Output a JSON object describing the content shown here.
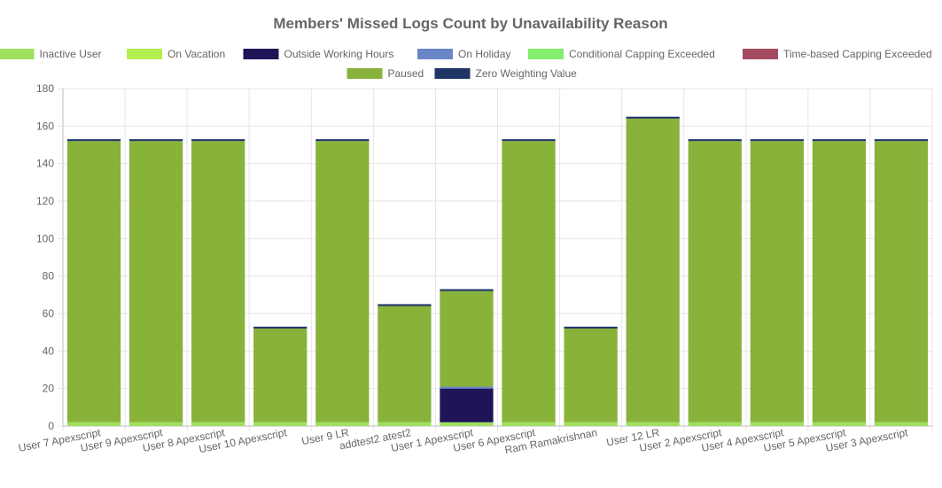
{
  "chart_data": {
    "type": "bar",
    "stacked": true,
    "title": "Members' Missed Logs Count by Unavailability Reason",
    "xlabel": "",
    "ylabel": "",
    "ylim": [
      0,
      180
    ],
    "yticks": [
      0,
      20,
      40,
      60,
      80,
      100,
      120,
      140,
      160,
      180
    ],
    "grid": true,
    "legend_position": "top",
    "categories": [
      "User 7 Apexscript",
      "User 9 Apexscript",
      "User 8 Apexscript",
      "User 10 Apexscript",
      "User 9 LR",
      "addtest2 atest2",
      "User 1 Apexscript",
      "User 6 Apexscript",
      "Ram Ramakrishnan",
      "User 12 LR",
      "User 2 Apexscript",
      "User 4 Apexscript",
      "User 5 Apexscript",
      "User 3 Apexscript"
    ],
    "series": [
      {
        "name": "Inactive User",
        "color": "#9ee05c",
        "values": [
          2,
          2,
          2,
          2,
          2,
          2,
          2,
          2,
          2,
          2,
          2,
          2,
          2,
          2
        ]
      },
      {
        "name": "On Vacation",
        "color": "#b3ef4e",
        "values": [
          0,
          0,
          0,
          0,
          0,
          0,
          0,
          0,
          0,
          0,
          0,
          0,
          0,
          0
        ]
      },
      {
        "name": "Outside Working Hours",
        "color": "#1f1457",
        "values": [
          0,
          0,
          0,
          0,
          0,
          0,
          18,
          0,
          0,
          0,
          0,
          0,
          0,
          0
        ]
      },
      {
        "name": "On Holiday",
        "color": "#6a86c8",
        "values": [
          0,
          0,
          0,
          0,
          0,
          0,
          1,
          0,
          0,
          0,
          0,
          0,
          0,
          0
        ]
      },
      {
        "name": "Conditional Capping Exceeded",
        "color": "#84ee6e",
        "values": [
          0,
          0,
          0,
          0,
          0,
          0,
          0,
          0,
          0,
          0,
          0,
          0,
          0,
          0
        ]
      },
      {
        "name": "Time-based Capping Exceeded",
        "color": "#a44b61",
        "values": [
          0,
          0,
          0,
          0,
          0,
          0,
          0,
          0,
          0,
          0,
          0,
          0,
          0,
          0
        ]
      },
      {
        "name": "Paused",
        "color": "#88b23a",
        "values": [
          150,
          150,
          150,
          50,
          150,
          62,
          51,
          150,
          50,
          162,
          150,
          150,
          150,
          150
        ]
      },
      {
        "name": "Zero Weighting Value",
        "color": "#1f3568",
        "values": [
          1,
          1,
          1,
          1,
          1,
          1,
          1,
          1,
          1,
          1,
          1,
          1,
          1,
          1
        ]
      }
    ]
  }
}
